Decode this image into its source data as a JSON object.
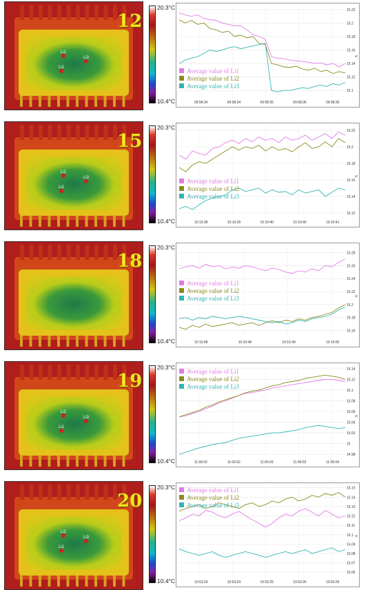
{
  "scale": {
    "max": "20.3°C",
    "min": "10.4°C"
  },
  "colors": {
    "Li1": "#e17ae7",
    "Li2": "#8b8a1f",
    "Li3": "#33b3b3"
  },
  "chart_data": [
    {
      "panel": "12",
      "type": "line",
      "unit": "V",
      "yticks": [
        "15.22",
        "15.2",
        "15.18",
        "15.16",
        "15.14",
        "15.12",
        "15.1"
      ],
      "ylim": [
        15.09,
        15.225
      ],
      "xticks": [
        "09:58:34",
        "09:58:34",
        "09:58:35",
        "09:58:36",
        "09:58:36"
      ],
      "legend_pos": "bottom-left",
      "series": [
        {
          "name": "Average value of Li1",
          "values": [
            15.215,
            15.212,
            15.21,
            15.212,
            15.207,
            15.205,
            15.204,
            15.2,
            15.198,
            15.196,
            15.196,
            15.19,
            15.183,
            15.18,
            15.176,
            15.15,
            15.148,
            15.147,
            15.145,
            15.144,
            15.143,
            15.142,
            15.14,
            15.141,
            15.138,
            15.14,
            15.135,
            15.14
          ]
        },
        {
          "name": "Average value of Li2",
          "values": [
            15.205,
            15.2,
            15.204,
            15.198,
            15.2,
            15.192,
            15.19,
            15.186,
            15.188,
            15.18,
            15.182,
            15.178,
            15.18,
            15.17,
            15.168,
            15.14,
            15.138,
            15.135,
            15.134,
            15.136,
            15.132,
            15.13,
            15.133,
            15.128,
            15.13,
            15.125,
            15.128,
            15.126
          ]
        },
        {
          "name": "Average value of Li3",
          "values": [
            15.14,
            15.145,
            15.148,
            15.15,
            15.155,
            15.16,
            15.158,
            15.16,
            15.163,
            15.165,
            15.162,
            15.164,
            15.166,
            15.168,
            15.17,
            15.1,
            15.098,
            15.1,
            15.1,
            15.102,
            15.104,
            15.103,
            15.106,
            15.108,
            15.106,
            15.11,
            15.108,
            15.112
          ]
        }
      ]
    },
    {
      "panel": "15",
      "type": "line",
      "unit": "V",
      "yticks": [
        "15.22",
        "15.2",
        "15.18",
        "15.16",
        "15.14",
        "15.12"
      ],
      "ylim": [
        15.115,
        15.225
      ],
      "xticks": [
        "10:10:38",
        "10:10:39",
        "10:10:40",
        "10:10:40",
        "10:10:41"
      ],
      "legend_pos": "bottom-left",
      "series": [
        {
          "name": "Average value of Li1",
          "values": [
            15.19,
            15.185,
            15.195,
            15.192,
            15.19,
            15.198,
            15.2,
            15.205,
            15.208,
            15.204,
            15.21,
            15.206,
            15.212,
            15.208,
            15.21,
            15.205,
            15.212,
            15.208,
            15.21,
            15.214,
            15.208,
            15.212,
            15.216,
            15.21,
            15.218,
            15.214
          ]
        },
        {
          "name": "Average value of Li2",
          "values": [
            15.175,
            15.17,
            15.178,
            15.182,
            15.18,
            15.185,
            15.19,
            15.195,
            15.2,
            15.196,
            15.2,
            15.198,
            15.202,
            15.195,
            15.2,
            15.196,
            15.198,
            15.194,
            15.2,
            15.205,
            15.198,
            15.2,
            15.206,
            15.2,
            15.21,
            15.205
          ]
        },
        {
          "name": "Average value of Li3",
          "values": [
            15.125,
            15.128,
            15.124,
            15.13,
            15.135,
            15.138,
            15.14,
            15.142,
            15.148,
            15.15,
            15.146,
            15.148,
            15.15,
            15.144,
            15.148,
            15.145,
            15.146,
            15.142,
            15.148,
            15.144,
            15.146,
            15.148,
            15.14,
            15.145,
            15.15,
            15.148
          ]
        }
      ]
    },
    {
      "panel": "18",
      "type": "line",
      "unit": "V",
      "yticks": [
        "15.28",
        "15.26",
        "15.24",
        "15.22",
        "15.2",
        "15.18",
        "15.16"
      ],
      "ylim": [
        15.15,
        15.29
      ],
      "xticks": [
        "10:15:48",
        "10:15:48",
        "10:15:49",
        "10:15:50"
      ],
      "legend_pos": "left",
      "series": [
        {
          "name": "Average value of Li1",
          "values": [
            15.255,
            15.258,
            15.26,
            15.256,
            15.262,
            15.258,
            15.26,
            15.255,
            15.258,
            15.256,
            15.26,
            15.258,
            15.255,
            15.252,
            15.256,
            15.254,
            15.25,
            15.248,
            15.252,
            15.25,
            15.255,
            15.252,
            15.26,
            15.258,
            15.265,
            15.27
          ]
        },
        {
          "name": "Average value of Li2",
          "values": [
            15.165,
            15.162,
            15.168,
            15.165,
            15.17,
            15.166,
            15.168,
            15.17,
            15.172,
            15.168,
            15.17,
            15.172,
            15.168,
            15.172,
            15.175,
            15.172,
            15.176,
            15.174,
            15.178,
            15.176,
            15.18,
            15.182,
            15.185,
            15.188,
            15.195,
            15.2
          ]
        },
        {
          "name": "Average value of Li3",
          "values": [
            15.178,
            15.18,
            15.176,
            15.18,
            15.178,
            15.182,
            15.18,
            15.178,
            15.18,
            15.182,
            15.18,
            15.178,
            15.176,
            15.174,
            15.172,
            15.174,
            15.17,
            15.172,
            15.176,
            15.174,
            15.178,
            15.18,
            15.182,
            15.185,
            15.192,
            15.196
          ]
        }
      ]
    },
    {
      "panel": "19",
      "type": "line",
      "unit": "V",
      "yticks": [
        "15.14",
        "15.12",
        "15.1",
        "15.08",
        "15.06",
        "15.04",
        "15.02",
        "15",
        "14.98"
      ],
      "ylim": [
        14.975,
        15.145
      ],
      "xticks": [
        "11:06:02",
        "11:06:02",
        "11:06:03",
        "11:06:03",
        "11:06:04"
      ],
      "legend_pos": "top-left",
      "series": [
        {
          "name": "Average value of Li1",
          "values": [
            15.05,
            15.052,
            15.056,
            15.06,
            15.065,
            15.07,
            15.076,
            15.08,
            15.085,
            15.09,
            15.094,
            15.095,
            15.098,
            15.1,
            15.104,
            15.106,
            15.108,
            15.11,
            15.112,
            15.114,
            15.116,
            15.118,
            15.12,
            15.12,
            15.118,
            15.116
          ]
        },
        {
          "name": "Average value of Li2",
          "values": [
            15.05,
            15.054,
            15.058,
            15.062,
            15.068,
            15.072,
            15.078,
            15.082,
            15.086,
            15.09,
            15.095,
            15.098,
            15.1,
            15.104,
            15.108,
            15.11,
            15.114,
            15.116,
            15.118,
            15.122,
            15.124,
            15.126,
            15.128,
            15.126,
            15.124,
            15.12
          ]
        },
        {
          "name": "Average value of Li3",
          "values": [
            14.98,
            14.984,
            14.988,
            14.992,
            14.995,
            14.998,
            15,
            15.002,
            15.006,
            15.01,
            15.012,
            15.014,
            15.016,
            15.018,
            15.02,
            15.02,
            15.022,
            15.024,
            15.026,
            15.03,
            15.032,
            15.034,
            15.032,
            15.03,
            15.028,
            15.03
          ]
        }
      ]
    },
    {
      "panel": "20",
      "type": "line",
      "unit": "V",
      "yticks": [
        "15.15",
        "15.14",
        "15.13",
        "15.12",
        "15.11",
        "15.1",
        "15.09",
        "15.08",
        "15.07",
        "15.06"
      ],
      "ylim": [
        15.055,
        15.152
      ],
      "xticks": [
        "10:53:24",
        "10:53:24",
        "10:53:25",
        "10:53:26",
        "10:53:26"
      ],
      "legend_pos": "top-left",
      "series": [
        {
          "name": "Average value of Li1",
          "values": [
            15.115,
            15.118,
            15.122,
            15.12,
            15.126,
            15.124,
            15.12,
            15.118,
            15.122,
            15.125,
            15.12,
            15.116,
            15.112,
            15.108,
            15.112,
            15.118,
            15.122,
            15.12,
            15.125,
            15.128,
            15.124,
            15.12,
            15.126,
            15.122,
            15.118,
            15.12
          ]
        },
        {
          "name": "Average value of Li2",
          "values": [
            15.125,
            15.128,
            15.13,
            15.132,
            15.128,
            15.13,
            15.134,
            15.132,
            15.13,
            15.128,
            15.132,
            15.134,
            15.13,
            15.132,
            15.136,
            15.134,
            15.138,
            15.14,
            15.136,
            15.138,
            15.142,
            15.14,
            15.144,
            15.142,
            15.145,
            15.14
          ]
        },
        {
          "name": "Average value of Li3",
          "values": [
            15.085,
            15.082,
            15.08,
            15.078,
            15.08,
            15.082,
            15.078,
            15.076,
            15.078,
            15.08,
            15.082,
            15.08,
            15.078,
            15.076,
            15.078,
            15.08,
            15.082,
            15.08,
            15.082,
            15.084,
            15.08,
            15.082,
            15.084,
            15.086,
            15.082,
            15.084
          ]
        }
      ]
    }
  ],
  "thermal_images": [
    {
      "panel": "12",
      "cell_labels": [
        "Li2",
        "Li1",
        "Li3"
      ]
    },
    {
      "panel": "15",
      "cell_labels": [
        "Li2",
        "Li1",
        "Li3"
      ]
    },
    {
      "panel": "18",
      "cell_labels": []
    },
    {
      "panel": "19",
      "cell_labels": [
        "Li2",
        "Li1",
        "Li3"
      ]
    },
    {
      "panel": "20",
      "cell_labels": [
        "Li2",
        "Li1",
        "Li3"
      ]
    }
  ]
}
